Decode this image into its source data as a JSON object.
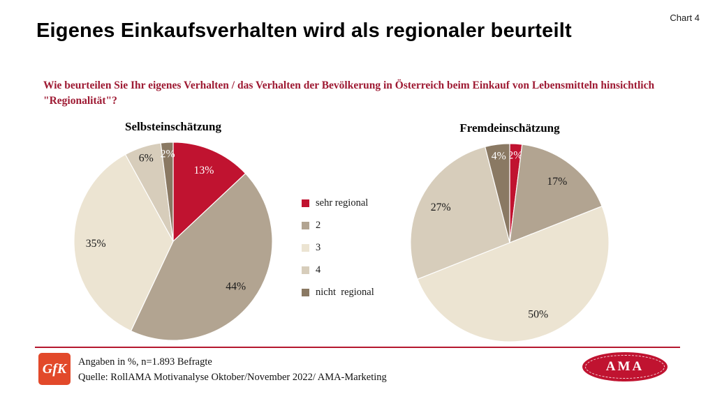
{
  "page": {
    "chart_label": "Chart 4",
    "title": "Eigenes Einkaufsverhalten wird als regionaler beurteilt",
    "question": "Wie beurteilen Sie Ihr eigenes Verhalten  / das Verhalten der Bevölkerung in Österreich beim Einkauf von Lebensmitteln hinsichtlich \"Regionalität\"?"
  },
  "colors": {
    "accent_red": "#b5182e",
    "question_red": "#9e1a33",
    "gfk_logo_red": "#e2492a",
    "ama_logo_red": "#c01330",
    "slice_sehr_regional": "#c01330",
    "slice_2": "#b2a491",
    "slice_3": "#ece4d2",
    "slice_4": "#d7cdbb",
    "slice_nicht_regional": "#8a7963"
  },
  "chart_data": [
    {
      "type": "pie",
      "title": "Selbsteinschätzung",
      "categories": [
        "sehr regional",
        "2",
        "3",
        "4",
        "nicht regional"
      ],
      "values": [
        13,
        44,
        35,
        6,
        2
      ],
      "unit": "%",
      "colors": [
        "#c01330",
        "#b2a491",
        "#ece4d2",
        "#d7cdbb",
        "#8a7963"
      ],
      "value_label_colors": [
        "#ffffff",
        "#1a1a1a",
        "#1a1a1a",
        "#1a1a1a",
        "#ffffff"
      ],
      "start_angle_deg": 0,
      "direction": "clockwise"
    },
    {
      "type": "pie",
      "title": "Fremdeinschätzung",
      "categories": [
        "sehr regional",
        "2",
        "3",
        "4",
        "nicht regional"
      ],
      "values": [
        2,
        17,
        50,
        27,
        4
      ],
      "unit": "%",
      "colors": [
        "#c01330",
        "#b2a491",
        "#ece4d2",
        "#d7cdbb",
        "#8a7963"
      ],
      "value_label_colors": [
        "#ffffff",
        "#1a1a1a",
        "#1a1a1a",
        "#1a1a1a",
        "#ffffff"
      ],
      "start_angle_deg": 0,
      "direction": "clockwise"
    }
  ],
  "legend": {
    "position": "center-between-charts",
    "items": [
      {
        "label": "sehr regional",
        "color": "#c01330"
      },
      {
        "label": "2",
        "color": "#b2a491"
      },
      {
        "label": "3",
        "color": "#ece4d2"
      },
      {
        "label": "4",
        "color": "#d7cdbb"
      },
      {
        "label": "nicht  regional",
        "color": "#8a7963"
      }
    ]
  },
  "footer": {
    "note": "Angaben in %, n=1.893 Befragte",
    "source": "Quelle: RollAMA Motivanalyse Oktober/November 2022/ AMA-Marketing",
    "gfk_logo_text": "GfK",
    "ama_logo_text": "AMA"
  }
}
